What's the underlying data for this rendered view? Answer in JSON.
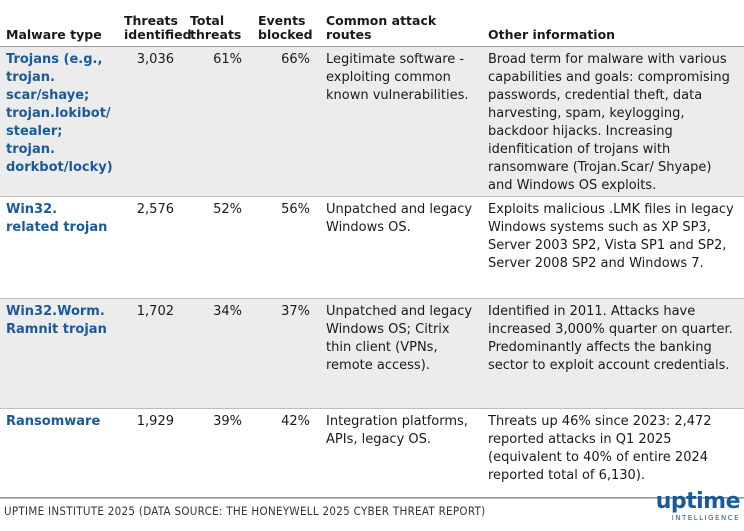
{
  "headers": [
    "Malware type",
    "Threats identified",
    "Total threats",
    "Events blocked",
    "Common attack routes",
    "Other information"
  ],
  "rows": [
    {
      "type": "Trojans (e.g., trojan. scar/shaye; trojan.lokibot/ stealer; trojan. dorkbot/locky)",
      "threats": "3,036",
      "total": "61%",
      "blocked": "66%",
      "routes": "Legitimate software - exploiting common known vulnerabilities.",
      "info": "Broad term for malware with various capabilities and goals: compromising passwords, credential theft, data harvesting, spam, keylogging, backdoor hijacks. Increasing idenfitication of trojans with ransomware (Trojan.Scar/ Shyape) and Windows OS exploits."
    },
    {
      "type": "Win32. related trojan",
      "threats": "2,576",
      "total": "52%",
      "blocked": "56%",
      "routes": "Unpatched and legacy Windows OS.",
      "info": "Exploits malicious .LMK files in legacy Windows systems such as XP SP3, Server 2003 SP2, Vista SP1 and SP2, Server 2008 SP2 and Windows 7."
    },
    {
      "type": "Win32.Worm. Ramnit trojan",
      "threats": "1,702",
      "total": "34%",
      "blocked": "37%",
      "routes": "Unpatched and legacy Windows OS; Citrix thin client (VPNs, remote access).",
      "info": "Identified in 2011. Attacks have increased 3,000% quarter on quarter. Predominantly affects the banking sector to exploit account credentials."
    },
    {
      "type": "Ransomware",
      "threats": "1,929",
      "total": "39%",
      "blocked": "42%",
      "routes": "Integration platforms, APIs, legacy OS.",
      "info": "Threats up 46% since 2023: 2,472 reported attacks in Q1 2025 (equivalent to 40% of  entire 2024 reported total of 6,130)."
    }
  ],
  "footer": {
    "source": "UPTIME INSTITUTE 2025 (DATA SOURCE: THE HONEYWELL 2025 CYBER THREAT REPORT)",
    "logo_word": "uptime",
    "logo_sub": "INTELLIGENCE"
  },
  "colors": {
    "accent": "#1a5a9a",
    "shade": "#ececec"
  }
}
